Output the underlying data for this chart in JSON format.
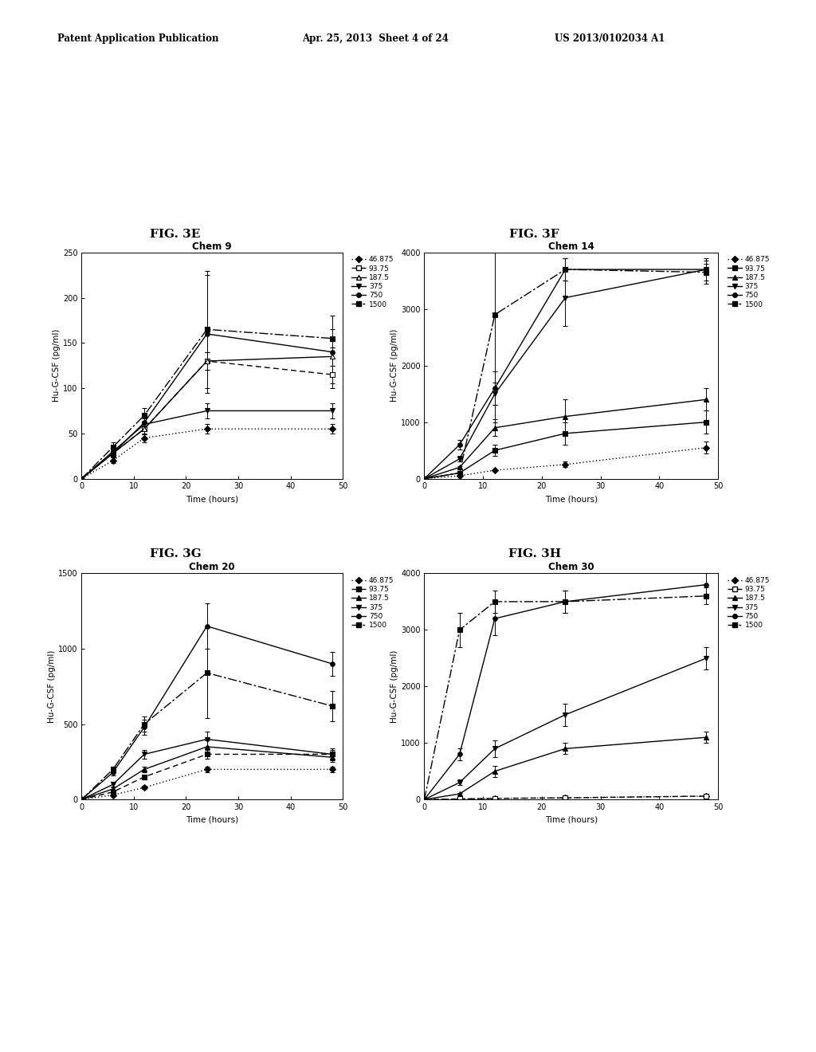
{
  "header_left": "Patent Application Publication",
  "header_mid": "Apr. 25, 2013  Sheet 4 of 24",
  "header_right": "US 2013/0102034 A1",
  "figures": [
    {
      "label": "FIG. 3E",
      "title": "Chem 9",
      "ylabel": "Hu-G-CSF (pg/ml)",
      "xlabel": "Time (hours)",
      "xlim": [
        0,
        50
      ],
      "ylim": [
        0,
        250
      ],
      "yticks": [
        0,
        50,
        100,
        150,
        200,
        250
      ],
      "xticks": [
        0,
        10,
        20,
        30,
        40,
        50
      ],
      "time_points": [
        0,
        6,
        12,
        24,
        48
      ],
      "series": [
        {
          "label": "46.875",
          "marker": "D",
          "mfc": "black",
          "ls": "dotted",
          "data": [
            0,
            20,
            45,
            55,
            55
          ],
          "err": [
            0,
            3,
            5,
            5,
            5
          ]
        },
        {
          "label": "93.75",
          "marker": "s",
          "mfc": "white",
          "ls": "dashed",
          "data": [
            0,
            28,
            55,
            130,
            115
          ],
          "err": [
            0,
            4,
            6,
            10,
            10
          ]
        },
        {
          "label": "187.5",
          "marker": "^",
          "mfc": "white",
          "ls": "solid",
          "data": [
            0,
            28,
            55,
            130,
            135
          ],
          "err": [
            0,
            4,
            6,
            10,
            10
          ]
        },
        {
          "label": "375",
          "marker": "v",
          "mfc": "black",
          "ls": "solid",
          "data": [
            0,
            30,
            60,
            75,
            75
          ],
          "err": [
            0,
            4,
            7,
            8,
            8
          ]
        },
        {
          "label": "750",
          "marker": "o",
          "mfc": "black",
          "ls": "solid",
          "data": [
            0,
            28,
            62,
            160,
            140
          ],
          "err": [
            0,
            4,
            7,
            65,
            40
          ]
        },
        {
          "label": "1500",
          "marker": "s",
          "mfc": "black",
          "ls": "dashdot",
          "data": [
            0,
            35,
            70,
            165,
            155
          ],
          "err": [
            0,
            5,
            8,
            65,
            10
          ]
        }
      ]
    },
    {
      "label": "FIG. 3F",
      "title": "Chem 14",
      "ylabel": "Hu-G-CSF (pg/ml)",
      "xlabel": "Time (hours)",
      "xlim": [
        0,
        50
      ],
      "ylim": [
        0,
        4000
      ],
      "yticks": [
        0,
        1000,
        2000,
        3000,
        4000
      ],
      "xticks": [
        0,
        10,
        20,
        30,
        40,
        50
      ],
      "time_points": [
        0,
        6,
        12,
        24,
        48
      ],
      "series": [
        {
          "label": "46.875",
          "marker": "D",
          "mfc": "black",
          "ls": "dotted",
          "data": [
            0,
            50,
            150,
            250,
            550
          ],
          "err": [
            0,
            10,
            20,
            50,
            100
          ]
        },
        {
          "label": "93.75",
          "marker": "s",
          "mfc": "black",
          "ls": "solid",
          "data": [
            0,
            100,
            500,
            800,
            1000
          ],
          "err": [
            0,
            15,
            100,
            200,
            200
          ]
        },
        {
          "label": "187.5",
          "marker": "^",
          "mfc": "black",
          "ls": "solid",
          "data": [
            0,
            200,
            900,
            1100,
            1400
          ],
          "err": [
            0,
            25,
            150,
            300,
            200
          ]
        },
        {
          "label": "375",
          "marker": "v",
          "mfc": "black",
          "ls": "solid",
          "data": [
            0,
            350,
            1500,
            3200,
            3700
          ],
          "err": [
            0,
            50,
            200,
            500,
            200
          ]
        },
        {
          "label": "750",
          "marker": "o",
          "mfc": "black",
          "ls": "solid",
          "data": [
            0,
            600,
            1600,
            3700,
            3700
          ],
          "err": [
            0,
            80,
            300,
            200,
            100
          ]
        },
        {
          "label": "1500",
          "marker": "s",
          "mfc": "black",
          "ls": "dashdot",
          "data": [
            0,
            100,
            2900,
            3700,
            3650
          ],
          "err": [
            0,
            20,
            1900,
            200,
            200
          ]
        }
      ]
    },
    {
      "label": "FIG. 3G",
      "title": "Chem 20",
      "ylabel": "Hu-G-CSF (pg/ml)",
      "xlabel": "Time (hours)",
      "xlim": [
        0,
        50
      ],
      "ylim": [
        0,
        1500
      ],
      "yticks": [
        0,
        500,
        1000,
        1500
      ],
      "xticks": [
        0,
        10,
        20,
        30,
        40,
        50
      ],
      "time_points": [
        0,
        6,
        12,
        24,
        48
      ],
      "series": [
        {
          "label": "46.875",
          "marker": "D",
          "mfc": "black",
          "ls": "dotted",
          "data": [
            0,
            30,
            80,
            200,
            200
          ],
          "err": [
            0,
            5,
            10,
            20,
            20
          ]
        },
        {
          "label": "93.75",
          "marker": "s",
          "mfc": "black",
          "ls": "dashed",
          "data": [
            0,
            50,
            150,
            300,
            300
          ],
          "err": [
            0,
            8,
            15,
            30,
            30
          ]
        },
        {
          "label": "187.5",
          "marker": "^",
          "mfc": "black",
          "ls": "solid",
          "data": [
            0,
            70,
            200,
            350,
            280
          ],
          "err": [
            0,
            10,
            20,
            40,
            30
          ]
        },
        {
          "label": "375",
          "marker": "v",
          "mfc": "black",
          "ls": "solid",
          "data": [
            0,
            100,
            300,
            400,
            300
          ],
          "err": [
            0,
            15,
            30,
            50,
            40
          ]
        },
        {
          "label": "750",
          "marker": "o",
          "mfc": "black",
          "ls": "solid",
          "data": [
            0,
            180,
            480,
            1150,
            900
          ],
          "err": [
            0,
            20,
            50,
            150,
            80
          ]
        },
        {
          "label": "1500",
          "marker": "s",
          "mfc": "black",
          "ls": "dashdot",
          "data": [
            0,
            200,
            500,
            840,
            620
          ],
          "err": [
            0,
            20,
            50,
            300,
            100
          ]
        }
      ]
    },
    {
      "label": "FIG. 3H",
      "title": "Chem 30",
      "ylabel": "Hu-G-CSF (pg/ml)",
      "xlabel": "Time (hours)",
      "xlim": [
        0,
        50
      ],
      "ylim": [
        0,
        4000
      ],
      "yticks": [
        0,
        1000,
        2000,
        3000,
        4000
      ],
      "xticks": [
        0,
        10,
        20,
        30,
        40,
        50
      ],
      "time_points": [
        0,
        6,
        12,
        24,
        48
      ],
      "series": [
        {
          "label": "46.875",
          "marker": "D",
          "mfc": "black",
          "ls": "dotted",
          "data": [
            0,
            10,
            20,
            30,
            60
          ],
          "err": [
            0,
            3,
            5,
            5,
            10
          ]
        },
        {
          "label": "93.75",
          "marker": "s",
          "mfc": "white",
          "ls": "dashed",
          "data": [
            0,
            10,
            20,
            30,
            60
          ],
          "err": [
            0,
            3,
            5,
            5,
            10
          ]
        },
        {
          "label": "187.5",
          "marker": "^",
          "mfc": "black",
          "ls": "solid",
          "data": [
            0,
            100,
            500,
            900,
            1100
          ],
          "err": [
            0,
            20,
            100,
            100,
            100
          ]
        },
        {
          "label": "375",
          "marker": "v",
          "mfc": "black",
          "ls": "solid",
          "data": [
            0,
            300,
            900,
            1500,
            2500
          ],
          "err": [
            0,
            50,
            150,
            200,
            200
          ]
        },
        {
          "label": "750",
          "marker": "o",
          "mfc": "black",
          "ls": "solid",
          "data": [
            0,
            800,
            3200,
            3500,
            3800
          ],
          "err": [
            0,
            100,
            300,
            200,
            200
          ]
        },
        {
          "label": "1500",
          "marker": "s",
          "mfc": "black",
          "ls": "dashdot",
          "data": [
            0,
            3000,
            3500,
            3500,
            3600
          ],
          "err": [
            0,
            300,
            200,
            200,
            150
          ]
        }
      ]
    }
  ],
  "bg_color": "white"
}
